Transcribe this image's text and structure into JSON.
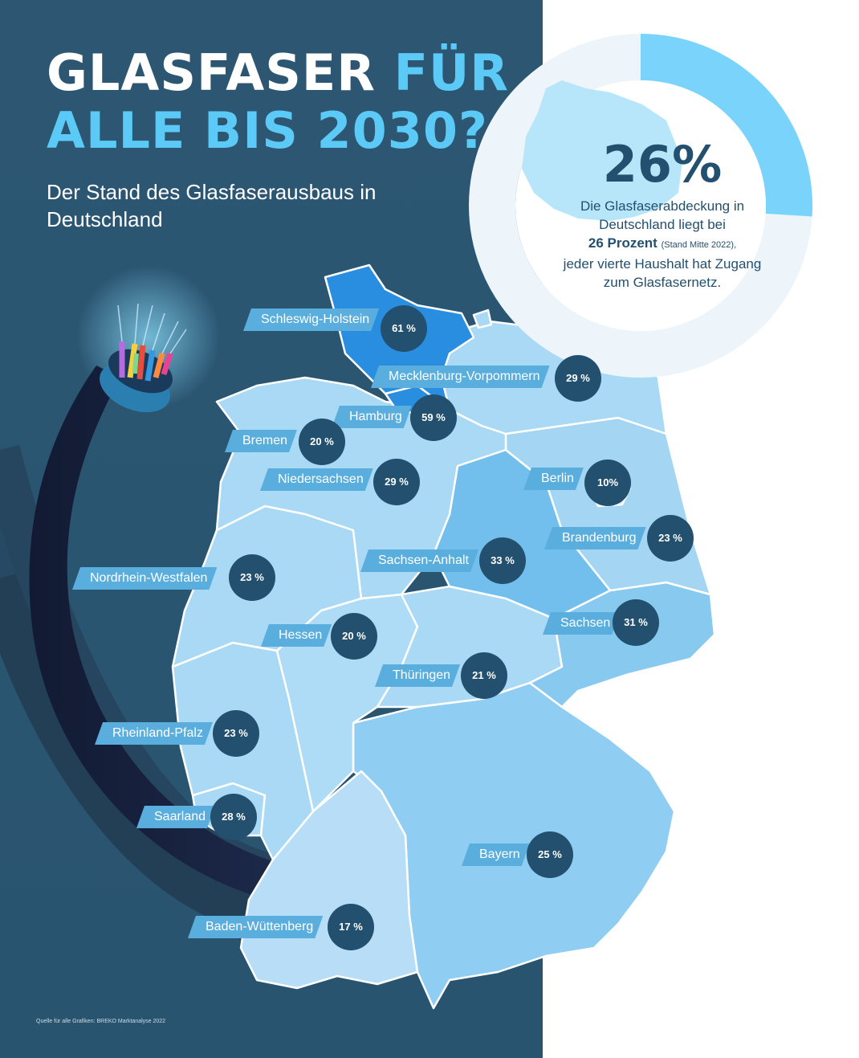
{
  "header": {
    "title_line1_white": "GLASFASER",
    "title_line1_accent": "FÜR",
    "title_line2_accent": "ALLE BIS 2030?",
    "subtitle": "Der Stand des Glasfaserausbaus in Deutschland"
  },
  "summary": {
    "percent_label": "26%",
    "coverage_percent": 26,
    "line1": "Die Glasfaserabdeckung in Deutschland liegt bei",
    "bold": "26 Prozent",
    "small": "(Stand Mitte 2022),",
    "line3": "jeder vierte Haushalt hat Zugang zum Glasfasernetz."
  },
  "colors": {
    "panel": "#2a5571",
    "accent": "#5ccaf6",
    "badge": "#23506e",
    "state_light": "#a9d9f5",
    "state_medium": "#7cc4ef",
    "state_dark": "#2a8ee0"
  },
  "states": [
    {
      "name": "Schleswig-Holstein",
      "value": "61 %"
    },
    {
      "name": "Mecklenburg-Vorpommern",
      "value": "29 %"
    },
    {
      "name": "Hamburg",
      "value": "59  %"
    },
    {
      "name": "Bremen",
      "value": "20  %"
    },
    {
      "name": "Niedersachsen",
      "value": "29 %"
    },
    {
      "name": "Berlin",
      "value": "10%"
    },
    {
      "name": "Brandenburg",
      "value": "23 %"
    },
    {
      "name": "Sachsen-Anhalt",
      "value": "33 %"
    },
    {
      "name": "Nordrhein-Westfalen",
      "value": "23 %"
    },
    {
      "name": "Sachsen",
      "value": "31 %"
    },
    {
      "name": "Hessen",
      "value": "20 %"
    },
    {
      "name": "Thüringen",
      "value": "21 %"
    },
    {
      "name": "Rheinland-Pfalz",
      "value": "23 %"
    },
    {
      "name": "Saarland",
      "value": "28 %"
    },
    {
      "name": "Bayern",
      "value": "25 %"
    },
    {
      "name": "Baden-Wüttenberg",
      "value": "17 %"
    }
  ],
  "source": "Quelle für alle Grafiken: BREKO Marktanalyse 2022"
}
